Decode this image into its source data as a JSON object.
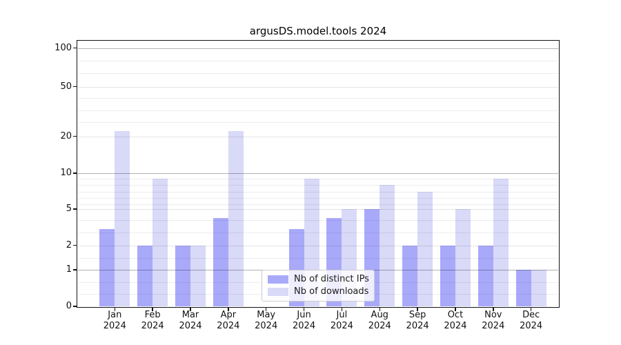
{
  "chart_data": {
    "type": "bar",
    "title": "argusDS.model.tools 2024",
    "categories": [
      "Jan 2024",
      "Feb 2024",
      "Mar 2024",
      "Apr 2024",
      "May 2024",
      "Jun 2024",
      "Jul 2024",
      "Aug 2024",
      "Sep 2024",
      "Oct 2024",
      "Nov 2024",
      "Dec 2024"
    ],
    "series": [
      {
        "name": "Nb of distinct IPs",
        "color": "#a9a9fa",
        "values": [
          3,
          2,
          2,
          4,
          0,
          3,
          4,
          5,
          2,
          2,
          2,
          1
        ]
      },
      {
        "name": "Nb of downloads",
        "color": "#d9d9f8",
        "values": [
          22,
          9,
          2,
          22,
          0,
          9,
          5,
          8,
          7,
          5,
          9,
          1
        ]
      }
    ],
    "y_axis": {
      "scale": "log-like",
      "ticks": [
        0,
        1,
        2,
        5,
        10,
        20,
        50,
        100
      ],
      "major_grid_values": [
        100,
        10,
        1
      ],
      "light_grid_values": [
        50,
        20,
        5,
        2
      ],
      "range_top": 130
    },
    "xlabel": "",
    "ylabel": "",
    "grid": true,
    "legend_position": "lower center",
    "colors": {
      "grid_major": "rgba(0,0,0,0.30)",
      "grid_light": "rgba(0,0,0,0.10)",
      "grid_minor": "rgba(0,0,0,0.07)"
    }
  }
}
